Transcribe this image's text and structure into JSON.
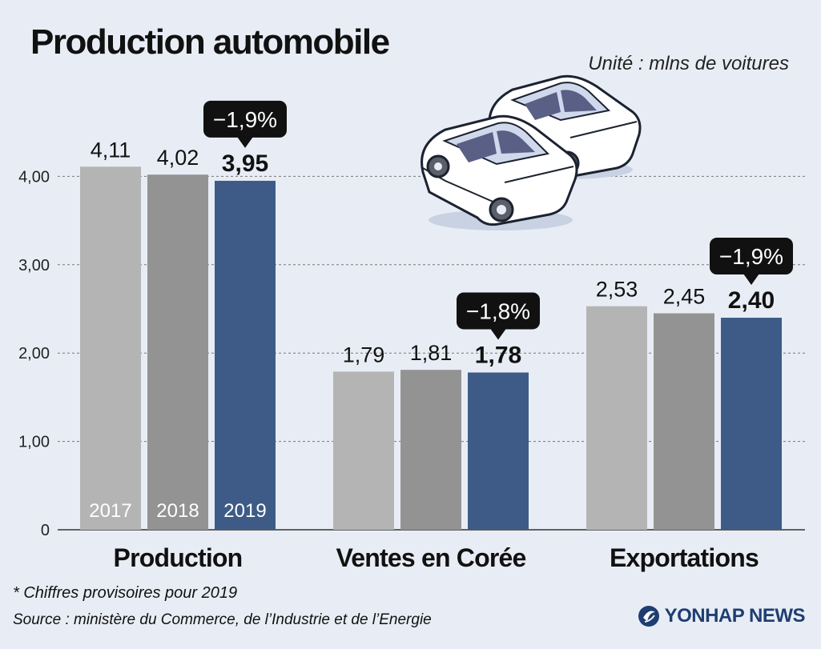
{
  "title": "Production automobile",
  "unit": "Unité : mlns de voitures",
  "note": "* Chiffres provisoires pour 2019",
  "source": "Source : ministère du Commerce, de l’Industrie et de l’Energie",
  "logo": "YONHAP NEWS",
  "colors": {
    "y2017": "#b4b4b4",
    "y2018": "#939393",
    "y2019": "#3d5b86",
    "grid": "#777777",
    "callout": "#111111"
  },
  "chart_data": {
    "type": "bar",
    "categories": [
      "Production",
      "Ventes en Corée",
      "Exportations"
    ],
    "series": [
      {
        "name": "2017",
        "values": [
          4.11,
          1.79,
          2.53
        ],
        "labels": [
          "4,11",
          "1,79",
          "2,53"
        ]
      },
      {
        "name": "2018",
        "values": [
          4.02,
          1.81,
          2.45
        ],
        "labels": [
          "4,02",
          "1,81",
          "2,45"
        ]
      },
      {
        "name": "2019",
        "values": [
          3.95,
          1.78,
          2.4
        ],
        "labels": [
          "3,95",
          "1,78",
          "2,40"
        ]
      }
    ],
    "changes": [
      "−1,9%",
      "−1,8%",
      "−1,9%"
    ],
    "yticks": [
      0,
      1,
      2,
      3,
      4
    ],
    "ytick_labels": [
      "0",
      "1,00",
      "2,00",
      "3,00",
      "4,00"
    ],
    "ylim": [
      0,
      4.5
    ],
    "legend_in_bars": [
      "2017",
      "2018",
      "2019"
    ],
    "grid": true
  }
}
